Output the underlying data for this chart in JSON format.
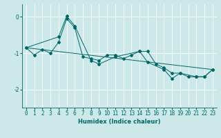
{
  "xlabel": "Humidex (Indice chaleur)",
  "background_color": "#cce8e8",
  "grid_color": "#ffffff",
  "line_color": "#006666",
  "xlim": [
    -0.5,
    23.5
  ],
  "ylim": [
    -2.5,
    0.35
  ],
  "yticks": [
    0,
    -1,
    -2
  ],
  "xticks": [
    0,
    1,
    2,
    3,
    4,
    5,
    6,
    7,
    8,
    9,
    10,
    11,
    12,
    13,
    14,
    15,
    16,
    17,
    18,
    19,
    20,
    21,
    22,
    23
  ],
  "series1_x": [
    0,
    1,
    2,
    3,
    4,
    5,
    6,
    7,
    8,
    9,
    10,
    11,
    12,
    13,
    14,
    15,
    16,
    17,
    18,
    19,
    20,
    21,
    22,
    23
  ],
  "series1_y": [
    -0.85,
    -1.05,
    -0.9,
    -1.0,
    -0.7,
    -0.05,
    -0.3,
    -1.1,
    -1.15,
    -1.2,
    -1.05,
    -1.05,
    -1.15,
    -1.05,
    -0.95,
    -0.95,
    -1.3,
    -1.4,
    -1.55,
    -1.55,
    -1.65,
    -1.65,
    -1.65,
    -1.45
  ],
  "series2_x": [
    0,
    4,
    5,
    6,
    8,
    9,
    11,
    14,
    15,
    17,
    18,
    19,
    21,
    22,
    23
  ],
  "series2_y": [
    -0.85,
    -0.55,
    0.02,
    -0.25,
    -1.2,
    -1.3,
    -1.1,
    -0.95,
    -1.25,
    -1.45,
    -1.7,
    -1.55,
    -1.65,
    -1.65,
    -1.45
  ],
  "series3_x": [
    0,
    23
  ],
  "series3_y": [
    -0.85,
    -1.45
  ],
  "tick_fontsize": 5.5,
  "xlabel_fontsize": 6.0,
  "marker_size": 2.0,
  "line_width": 0.7
}
